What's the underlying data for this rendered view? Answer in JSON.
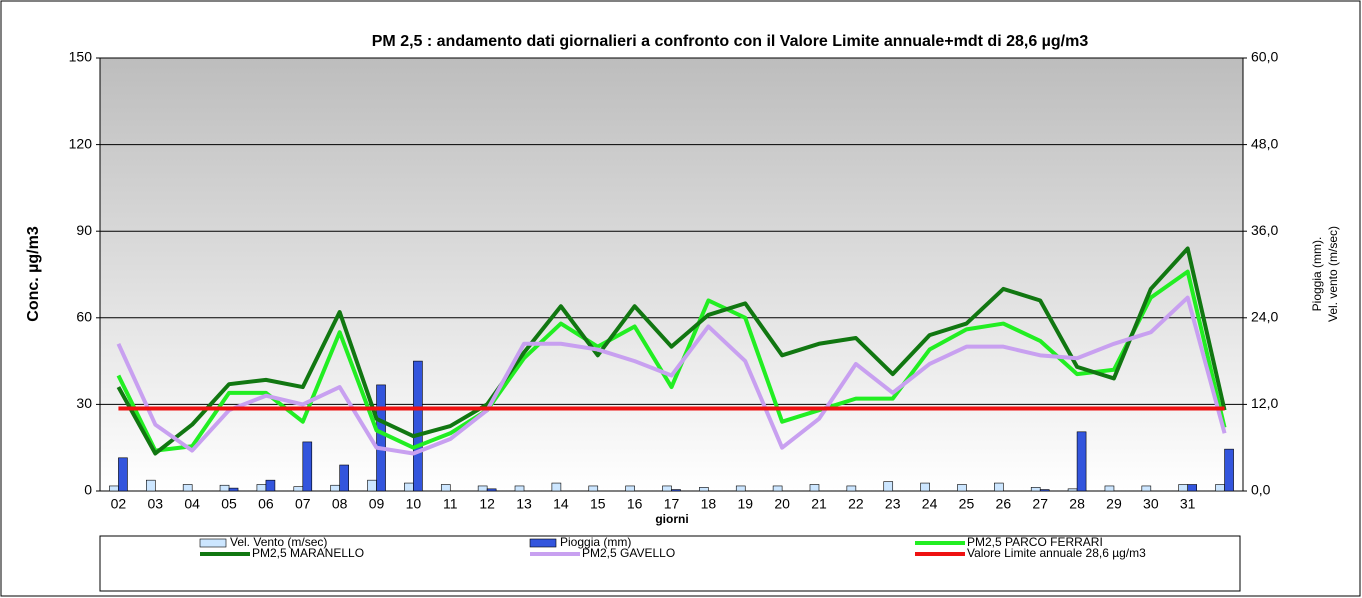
{
  "chart_data": {
    "type": "combo",
    "title": "PM 2,5 : andamento  dati giornalieri  a confronto con il Valore Limite annuale+mdt  di 28,6 µg/m3",
    "x_label": "giorni",
    "y_label": "Conc. µg/m3",
    "y2_label": [
      "Pioggia (mm).",
      "Vel. vento (m/sec)"
    ],
    "categories": [
      "02",
      "03",
      "04",
      "05",
      "06",
      "07",
      "08",
      "09",
      "10",
      "11",
      "12",
      "13",
      "14",
      "15",
      "16",
      "17",
      "18",
      "19",
      "20",
      "21",
      "22",
      "23",
      "24",
      "25",
      "26",
      "27",
      "28",
      "29",
      "30",
      "31",
      null
    ],
    "ylim": [
      0,
      150
    ],
    "yticks": [
      0,
      30,
      60,
      90,
      120,
      150
    ],
    "y2lim": [
      0,
      60
    ],
    "y2ticks": [
      {
        "value": 0,
        "label": "0,0"
      },
      {
        "value": 12,
        "label": "12,0"
      },
      {
        "value": 24,
        "label": "24,0"
      },
      {
        "value": 36,
        "label": "36,0"
      },
      {
        "value": 48,
        "label": "48,0"
      },
      {
        "value": 60,
        "label": "60,0"
      }
    ],
    "grid": true,
    "legend": "bottom",
    "series": [
      {
        "name": "Vel. Vento (m/sec)",
        "kind": "bar",
        "axis": "y2",
        "color": "#cce6ff",
        "values": [
          0.7,
          1.5,
          0.9,
          0.8,
          0.9,
          0.6,
          0.8,
          1.5,
          1.1,
          0.9,
          0.7,
          0.7,
          1.1,
          0.7,
          0.7,
          0.7,
          0.5,
          0.7,
          0.7,
          0.9,
          0.7,
          1.3,
          1.1,
          0.9,
          1.1,
          0.5,
          0.3,
          0.7,
          0.7,
          0.9,
          0.9
        ]
      },
      {
        "name": "Pioggia (mm)",
        "kind": "bar",
        "axis": "y2",
        "color": "#3355dd",
        "values": [
          4.6,
          0,
          0,
          0.4,
          1.5,
          6.8,
          3.6,
          14.7,
          18,
          0,
          0.3,
          0,
          0,
          0,
          0,
          0.2,
          0,
          0,
          0,
          0,
          0,
          0,
          0,
          0,
          0,
          0.2,
          8.2,
          0,
          0,
          0.9,
          5.8
        ]
      },
      {
        "name": "PM2,5 PARCO FERRARI",
        "kind": "line",
        "color": "#22ee22",
        "values": [
          40,
          14,
          15.5,
          34,
          34,
          24,
          55,
          21,
          15,
          20,
          28,
          46,
          58,
          50,
          57,
          36,
          66,
          60,
          24,
          28,
          32,
          32,
          49,
          56,
          58,
          52,
          40.5,
          42,
          67,
          76,
          22
        ]
      },
      {
        "name": "PM2,5 MARANELLO",
        "kind": "line",
        "color": "#117711",
        "values": [
          36,
          13,
          23,
          37,
          38.5,
          36,
          62,
          25,
          19,
          22.5,
          30,
          48,
          64,
          47,
          64,
          50,
          61,
          65,
          47,
          51,
          53,
          40.5,
          54,
          58,
          70,
          66,
          43,
          39,
          70,
          84,
          28
        ]
      },
      {
        "name": "PM2,5 GAVELLO",
        "kind": "line",
        "color": "#c8a0f0",
        "values": [
          51,
          23,
          14,
          28,
          33,
          30,
          36,
          15,
          13,
          18,
          28,
          51,
          51,
          49,
          45,
          40,
          57,
          45,
          15,
          25,
          44,
          34,
          44,
          50,
          50,
          47,
          46,
          51,
          55,
          67,
          20
        ]
      },
      {
        "name": "Valore Limite annuale 28,6 µg/m3",
        "kind": "line",
        "color": "#ee1111",
        "values": [
          28.6,
          28.6,
          28.6,
          28.6,
          28.6,
          28.6,
          28.6,
          28.6,
          28.6,
          28.6,
          28.6,
          28.6,
          28.6,
          28.6,
          28.6,
          28.6,
          28.6,
          28.6,
          28.6,
          28.6,
          28.6,
          28.6,
          28.6,
          28.6,
          28.6,
          28.6,
          28.6,
          28.6,
          28.6,
          28.6,
          28.6
        ]
      }
    ]
  }
}
